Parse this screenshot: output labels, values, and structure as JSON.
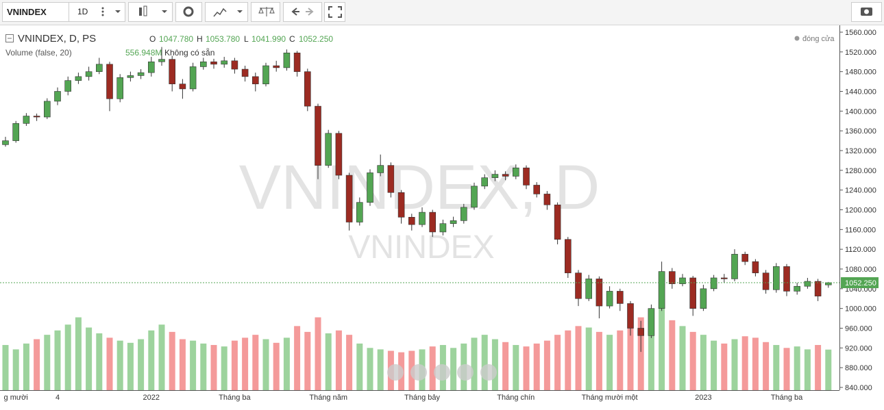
{
  "toolbar": {
    "symbol": "VNINDEX",
    "interval": "1D"
  },
  "header": {
    "title": "VNINDEX, D, PS",
    "o": "O",
    "open_label": "1047.780",
    "h": "H",
    "high_label": "1053.780",
    "l": "L",
    "low_label": "1041.990",
    "c": "C",
    "close_label": "1052.250",
    "volume_title": "Volume (false, 20)",
    "volume_value_label": "556.948M",
    "volume_note": "Không có sẵn",
    "legend": "đóng cửa"
  },
  "watermark": {
    "line1": "VNINDEX, D",
    "line2": "VNINDEX"
  },
  "chart_data": {
    "type": "candlestick",
    "open": [
      1332,
      1340,
      1375,
      1390,
      1388,
      1420,
      1440,
      1462,
      1470,
      1480,
      1495,
      1425,
      1468,
      1472,
      1478,
      1500,
      1505,
      1455,
      1445,
      1490,
      1500,
      1495,
      1502,
      1485,
      1470,
      1455,
      1492,
      1488,
      1518,
      1480,
      1410,
      1290,
      1355,
      1270,
      1175,
      1215,
      1275,
      1290,
      1235,
      1185,
      1170,
      1195,
      1155,
      1172,
      1178,
      1205,
      1248,
      1265,
      1272,
      1268,
      1285,
      1250,
      1232,
      1210,
      1140,
      1072,
      1020,
      1060,
      1005,
      1035,
      1010,
      960,
      945,
      1000,
      1075,
      1050,
      1062,
      1000,
      1040,
      1062,
      1060,
      1110,
      1095,
      1072,
      1038,
      1085,
      1035,
      1045,
      1055,
      1047.78
    ],
    "high": [
      1348,
      1380,
      1396,
      1395,
      1426,
      1448,
      1470,
      1478,
      1490,
      1508,
      1500,
      1475,
      1480,
      1485,
      1510,
      1530,
      1512,
      1465,
      1498,
      1508,
      1506,
      1510,
      1508,
      1492,
      1478,
      1498,
      1502,
      1525,
      1522,
      1486,
      1415,
      1362,
      1360,
      1275,
      1225,
      1282,
      1312,
      1296,
      1240,
      1192,
      1205,
      1200,
      1180,
      1186,
      1212,
      1255,
      1272,
      1280,
      1278,
      1292,
      1290,
      1256,
      1238,
      1215,
      1145,
      1078,
      1068,
      1065,
      1045,
      1040,
      1015,
      975,
      1008,
      1095,
      1082,
      1070,
      1066,
      1048,
      1068,
      1070,
      1120,
      1115,
      1100,
      1078,
      1092,
      1090,
      1052,
      1062,
      1060,
      1053.78
    ],
    "low": [
      1328,
      1336,
      1370,
      1380,
      1384,
      1412,
      1432,
      1455,
      1462,
      1475,
      1400,
      1418,
      1460,
      1465,
      1470,
      1492,
      1440,
      1425,
      1440,
      1484,
      1486,
      1488,
      1476,
      1460,
      1440,
      1450,
      1480,
      1482,
      1470,
      1400,
      1262,
      1285,
      1262,
      1158,
      1168,
      1208,
      1268,
      1225,
      1172,
      1158,
      1165,
      1145,
      1148,
      1165,
      1172,
      1200,
      1242,
      1258,
      1260,
      1262,
      1242,
      1225,
      1200,
      1130,
      1062,
      1005,
      1015,
      980,
      1000,
      995,
      945,
      912,
      940,
      995,
      1040,
      1045,
      985,
      995,
      1035,
      1052,
      1055,
      1088,
      1065,
      1030,
      1032,
      1025,
      1028,
      1040,
      1015,
      1041.99
    ],
    "close": [
      1340,
      1375,
      1390,
      1388,
      1420,
      1440,
      1462,
      1470,
      1480,
      1495,
      1425,
      1468,
      1472,
      1478,
      1500,
      1505,
      1455,
      1445,
      1490,
      1500,
      1495,
      1502,
      1485,
      1470,
      1455,
      1492,
      1488,
      1518,
      1480,
      1410,
      1290,
      1355,
      1270,
      1175,
      1215,
      1275,
      1290,
      1235,
      1185,
      1170,
      1195,
      1155,
      1172,
      1178,
      1205,
      1248,
      1265,
      1272,
      1268,
      1285,
      1250,
      1232,
      1210,
      1140,
      1072,
      1020,
      1060,
      1005,
      1035,
      1010,
      960,
      945,
      1000,
      1075,
      1050,
      1062,
      1000,
      1040,
      1062,
      1060,
      1110,
      1095,
      1072,
      1038,
      1085,
      1035,
      1045,
      1055,
      1025,
      1052.25
    ],
    "volume": [
      620,
      560,
      640,
      700,
      760,
      820,
      900,
      1000,
      860,
      780,
      720,
      680,
      650,
      700,
      820,
      900,
      800,
      700,
      680,
      640,
      620,
      600,
      680,
      720,
      760,
      700,
      650,
      720,
      880,
      800,
      1000,
      780,
      820,
      760,
      640,
      580,
      560,
      540,
      520,
      540,
      560,
      600,
      620,
      580,
      640,
      720,
      760,
      700,
      660,
      620,
      600,
      640,
      680,
      760,
      820,
      880,
      860,
      800,
      760,
      820,
      880,
      1000,
      1100,
      1250,
      960,
      880,
      800,
      760,
      680,
      640,
      700,
      740,
      720,
      660,
      620,
      580,
      600,
      560,
      620,
      556.948
    ],
    "up_color": "#53a553",
    "down_color": "#9c2b22",
    "volume_up_color": "#9dd39d",
    "volume_down_color": "#f49a9a",
    "last_price": {
      "value": 1052.25,
      "label": "1052.250"
    },
    "ylim": [
      840,
      1560
    ],
    "yticks": [
      {
        "value": 840,
        "label": "840.000"
      },
      {
        "value": 880,
        "label": "880.000"
      },
      {
        "value": 920,
        "label": "920.000"
      },
      {
        "value": 960,
        "label": "960.000"
      },
      {
        "value": 1000,
        "label": "1000.000"
      },
      {
        "value": 1040,
        "label": "1040.000"
      },
      {
        "value": 1080,
        "label": "1080.000"
      },
      {
        "value": 1120,
        "label": "1120.000"
      },
      {
        "value": 1160,
        "label": "1160.000"
      },
      {
        "value": 1200,
        "label": "1200.000"
      },
      {
        "value": 1240,
        "label": "1240.000"
      },
      {
        "value": 1280,
        "label": "1280.000"
      },
      {
        "value": 1320,
        "label": "1320.000"
      },
      {
        "value": 1360,
        "label": "1360.000"
      },
      {
        "value": 1400,
        "label": "1400.000"
      },
      {
        "value": 1440,
        "label": "1440.000"
      },
      {
        "value": 1480,
        "label": "1480.000"
      },
      {
        "value": 1520,
        "label": "1520.000"
      },
      {
        "value": 1560,
        "label": "1560.000"
      }
    ],
    "x_labels": [
      {
        "label": "g mười",
        "candle": 1
      },
      {
        "label": "4",
        "candle": 5
      },
      {
        "label": "2022",
        "candle": 14
      },
      {
        "label": "Tháng ba",
        "candle": 22
      },
      {
        "label": "Tháng năm",
        "candle": 31
      },
      {
        "label": "Tháng bảy",
        "candle": 40
      },
      {
        "label": "Tháng chín",
        "candle": 49
      },
      {
        "label": "Tháng mười một",
        "candle": 58
      },
      {
        "label": "2023",
        "candle": 67
      },
      {
        "label": "Tháng ba",
        "candle": 75
      }
    ]
  }
}
